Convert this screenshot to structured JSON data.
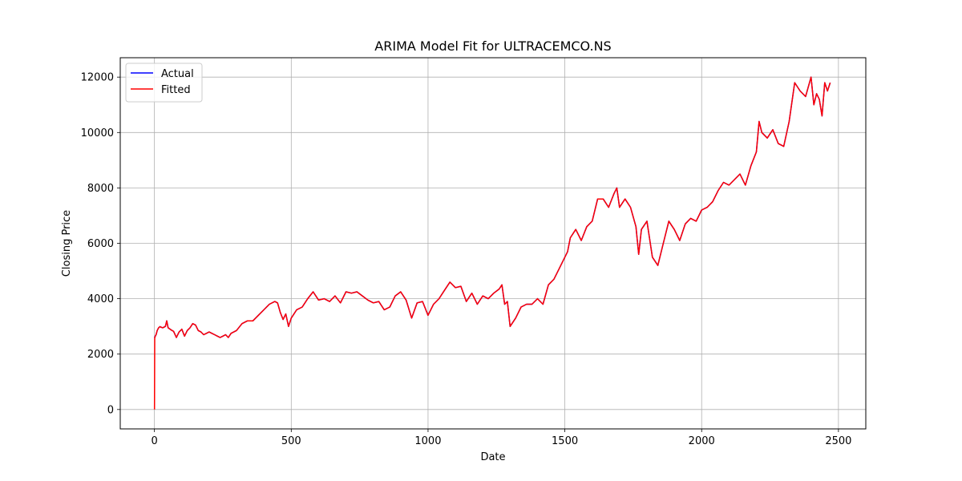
{
  "chart_data": {
    "type": "line",
    "title": "ARIMA Model Fit for ULTRACEMCO.NS",
    "xlabel": "Date",
    "ylabel": "Closing Price",
    "xlim": [
      -125,
      2600
    ],
    "ylim": [
      -700,
      12700
    ],
    "xticks": [
      0,
      500,
      1000,
      1500,
      2000,
      2500
    ],
    "yticks": [
      0,
      2000,
      4000,
      6000,
      8000,
      10000,
      12000
    ],
    "grid": true,
    "legend_position": "upper-left",
    "series": [
      {
        "name": "Actual",
        "color": "#0000ff",
        "x": [
          0,
          3,
          6,
          10,
          15,
          20,
          30,
          40,
          45,
          50,
          60,
          70,
          80,
          90,
          100,
          110,
          120,
          130,
          140,
          150,
          160,
          170,
          180,
          190,
          200,
          210,
          220,
          230,
          240,
          250,
          260,
          270,
          280,
          290,
          300,
          320,
          340,
          360,
          380,
          400,
          420,
          440,
          450,
          460,
          470,
          480,
          490,
          500,
          520,
          540,
          560,
          580,
          600,
          620,
          640,
          660,
          680,
          700,
          720,
          740,
          760,
          780,
          800,
          820,
          840,
          860,
          880,
          900,
          920,
          940,
          960,
          980,
          1000,
          1020,
          1040,
          1060,
          1080,
          1100,
          1120,
          1140,
          1160,
          1180,
          1200,
          1220,
          1240,
          1260,
          1270,
          1280,
          1290,
          1300,
          1320,
          1340,
          1360,
          1380,
          1400,
          1420,
          1440,
          1460,
          1480,
          1500,
          1510,
          1520,
          1540,
          1560,
          1580,
          1600,
          1620,
          1640,
          1660,
          1680,
          1690,
          1700,
          1720,
          1740,
          1760,
          1770,
          1780,
          1800,
          1820,
          1840,
          1860,
          1880,
          1900,
          1920,
          1940,
          1960,
          1980,
          2000,
          2020,
          2040,
          2060,
          2080,
          2100,
          2120,
          2140,
          2160,
          2180,
          2200,
          2210,
          2220,
          2240,
          2260,
          2280,
          2300,
          2320,
          2340,
          2360,
          2380,
          2400,
          2410,
          2420,
          2430,
          2440,
          2450,
          2460,
          2470
        ],
        "values": [
          2600,
          2650,
          2700,
          2850,
          2950,
          2990,
          2950,
          3000,
          3200,
          2950,
          2880,
          2820,
          2600,
          2800,
          2900,
          2650,
          2850,
          2950,
          3100,
          3050,
          2850,
          2800,
          2700,
          2750,
          2800,
          2750,
          2700,
          2650,
          2600,
          2650,
          2700,
          2600,
          2750,
          2800,
          2850,
          3100,
          3200,
          3200,
          3400,
          3600,
          3800,
          3900,
          3850,
          3500,
          3250,
          3450,
          3000,
          3300,
          3600,
          3700,
          4000,
          4250,
          3950,
          4000,
          3900,
          4100,
          3850,
          4250,
          4200,
          4250,
          4100,
          3950,
          3850,
          3900,
          3600,
          3700,
          4100,
          4250,
          3950,
          3300,
          3850,
          3900,
          3400,
          3800,
          4000,
          4300,
          4600,
          4400,
          4450,
          3900,
          4200,
          3800,
          4100,
          4000,
          4200,
          4350,
          4500,
          3800,
          3900,
          3000,
          3300,
          3700,
          3800,
          3800,
          4000,
          3800,
          4500,
          4700,
          5100,
          5500,
          5700,
          6200,
          6500,
          6100,
          6600,
          6800,
          7600,
          7600,
          7300,
          7800,
          8000,
          7300,
          7600,
          7300,
          6600,
          5600,
          6500,
          6800,
          5500,
          5200,
          6000,
          6800,
          6500,
          6100,
          6700,
          6900,
          6800,
          7200,
          7300,
          7500,
          7900,
          8200,
          8100,
          8300,
          8500,
          8100,
          8800,
          9300,
          10400,
          10000,
          9800,
          10100,
          9600,
          9500,
          10400,
          11800,
          11500,
          11300,
          12000,
          11000,
          11400,
          11200,
          10600,
          11800,
          11500,
          11800
        ]
      },
      {
        "name": "Fitted",
        "color": "#ff0000",
        "x": [
          0,
          1,
          2,
          3,
          6,
          10,
          15,
          20,
          30,
          40,
          45,
          50,
          60,
          70,
          80,
          90,
          100,
          110,
          120,
          130,
          140,
          150,
          160,
          170,
          180,
          190,
          200,
          210,
          220,
          230,
          240,
          250,
          260,
          270,
          280,
          290,
          300,
          320,
          340,
          360,
          380,
          400,
          420,
          440,
          450,
          460,
          470,
          480,
          490,
          500,
          520,
          540,
          560,
          580,
          600,
          620,
          640,
          660,
          680,
          700,
          720,
          740,
          760,
          780,
          800,
          820,
          840,
          860,
          880,
          900,
          920,
          940,
          960,
          980,
          1000,
          1020,
          1040,
          1060,
          1080,
          1100,
          1120,
          1140,
          1160,
          1180,
          1200,
          1220,
          1240,
          1260,
          1270,
          1280,
          1290,
          1300,
          1320,
          1340,
          1360,
          1380,
          1400,
          1420,
          1440,
          1460,
          1480,
          1500,
          1510,
          1520,
          1540,
          1560,
          1580,
          1600,
          1620,
          1640,
          1660,
          1680,
          1690,
          1700,
          1720,
          1740,
          1760,
          1770,
          1780,
          1800,
          1820,
          1840,
          1860,
          1880,
          1900,
          1920,
          1940,
          1960,
          1980,
          2000,
          2020,
          2040,
          2060,
          2080,
          2100,
          2120,
          2140,
          2160,
          2180,
          2200,
          2210,
          2220,
          2240,
          2260,
          2280,
          2300,
          2320,
          2340,
          2360,
          2380,
          2400,
          2410,
          2420,
          2430,
          2440,
          2450,
          2460,
          2470
        ],
        "values": [
          0,
          2600,
          2600,
          2650,
          2700,
          2850,
          2950,
          2990,
          2950,
          3000,
          3200,
          2950,
          2880,
          2820,
          2600,
          2800,
          2900,
          2650,
          2850,
          2950,
          3100,
          3050,
          2850,
          2800,
          2700,
          2750,
          2800,
          2750,
          2700,
          2650,
          2600,
          2650,
          2700,
          2600,
          2750,
          2800,
          2850,
          3100,
          3200,
          3200,
          3400,
          3600,
          3800,
          3900,
          3850,
          3500,
          3250,
          3450,
          3000,
          3300,
          3600,
          3700,
          4000,
          4250,
          3950,
          4000,
          3900,
          4100,
          3850,
          4250,
          4200,
          4250,
          4100,
          3950,
          3850,
          3900,
          3600,
          3700,
          4100,
          4250,
          3950,
          3300,
          3850,
          3900,
          3400,
          3800,
          4000,
          4300,
          4600,
          4400,
          4450,
          3900,
          4200,
          3800,
          4100,
          4000,
          4200,
          4350,
          4500,
          3800,
          3900,
          3000,
          3300,
          3700,
          3800,
          3800,
          4000,
          3800,
          4500,
          4700,
          5100,
          5500,
          5700,
          6200,
          6500,
          6100,
          6600,
          6800,
          7600,
          7600,
          7300,
          7800,
          8000,
          7300,
          7600,
          7300,
          6600,
          5600,
          6500,
          6800,
          5500,
          5200,
          6000,
          6800,
          6500,
          6100,
          6700,
          6900,
          6800,
          7200,
          7300,
          7500,
          7900,
          8200,
          8100,
          8300,
          8500,
          8100,
          8800,
          9300,
          10400,
          10000,
          9800,
          10100,
          9600,
          9500,
          10400,
          11800,
          11500,
          11300,
          12000,
          11000,
          11400,
          11200,
          10600,
          11800,
          11500,
          11800
        ]
      }
    ]
  }
}
